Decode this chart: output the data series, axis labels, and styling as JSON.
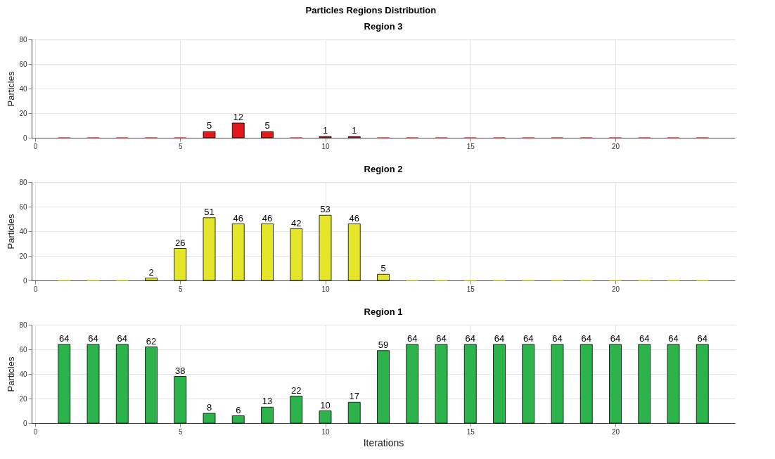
{
  "chart_data": [
    {
      "type": "bar",
      "title": "Particles Regions Distribution",
      "subtitle": "Region 3",
      "ylabel": "Particles",
      "x": [
        1,
        2,
        3,
        4,
        5,
        6,
        7,
        8,
        9,
        10,
        11,
        12,
        13,
        14,
        15,
        16,
        17,
        18,
        19,
        20,
        21,
        22,
        23
      ],
      "values": [
        0,
        0,
        0,
        0,
        0,
        5,
        12,
        5,
        0,
        1,
        1,
        0,
        0,
        0,
        0,
        0,
        0,
        0,
        0,
        0,
        0,
        0,
        0
      ],
      "value_labels": [
        null,
        null,
        null,
        null,
        null,
        "5",
        "12",
        "5",
        null,
        "1",
        "1",
        null,
        null,
        null,
        null,
        null,
        null,
        null,
        null,
        null,
        null,
        null,
        null
      ],
      "color": "#e3191c",
      "xlim": [
        0,
        24
      ],
      "xticks": [
        0,
        5,
        10,
        15,
        20
      ],
      "ylim": [
        0,
        80
      ],
      "yticks": [
        0,
        20,
        40,
        60,
        80
      ],
      "grid": true
    },
    {
      "type": "bar",
      "title": "Region 2",
      "ylabel": "Particles",
      "x": [
        1,
        2,
        3,
        4,
        5,
        6,
        7,
        8,
        9,
        10,
        11,
        12,
        13,
        14,
        15,
        16,
        17,
        18,
        19,
        20,
        21,
        22,
        23
      ],
      "values": [
        0,
        0,
        0,
        2,
        26,
        51,
        46,
        46,
        42,
        53,
        46,
        5,
        0,
        0,
        0,
        0,
        0,
        0,
        0,
        0,
        0,
        0,
        0
      ],
      "value_labels": [
        null,
        null,
        null,
        "2",
        "26",
        "51",
        "46",
        "46",
        "42",
        "53",
        "46",
        "5",
        null,
        null,
        null,
        null,
        null,
        null,
        null,
        null,
        null,
        null,
        null
      ],
      "color": "#e5e52a",
      "xlim": [
        0,
        24
      ],
      "xticks": [
        0,
        5,
        10,
        15,
        20
      ],
      "ylim": [
        0,
        80
      ],
      "yticks": [
        0,
        20,
        40,
        60,
        80
      ],
      "grid": true
    },
    {
      "type": "bar",
      "title": "Region 1",
      "xlabel": "Iterations",
      "ylabel": "Particles",
      "x": [
        1,
        2,
        3,
        4,
        5,
        6,
        7,
        8,
        9,
        10,
        11,
        12,
        13,
        14,
        15,
        16,
        17,
        18,
        19,
        20,
        21,
        22,
        23
      ],
      "values": [
        64,
        64,
        64,
        62,
        38,
        8,
        6,
        13,
        22,
        10,
        17,
        59,
        64,
        64,
        64,
        64,
        64,
        64,
        64,
        64,
        64,
        64,
        64
      ],
      "data_labels": true,
      "color": "#2db34b",
      "xlim": [
        0,
        24
      ],
      "xticks": [
        0,
        5,
        10,
        15,
        20
      ],
      "ylim": [
        0,
        80
      ],
      "yticks": [
        0,
        20,
        40,
        60,
        80
      ],
      "grid": true
    }
  ]
}
